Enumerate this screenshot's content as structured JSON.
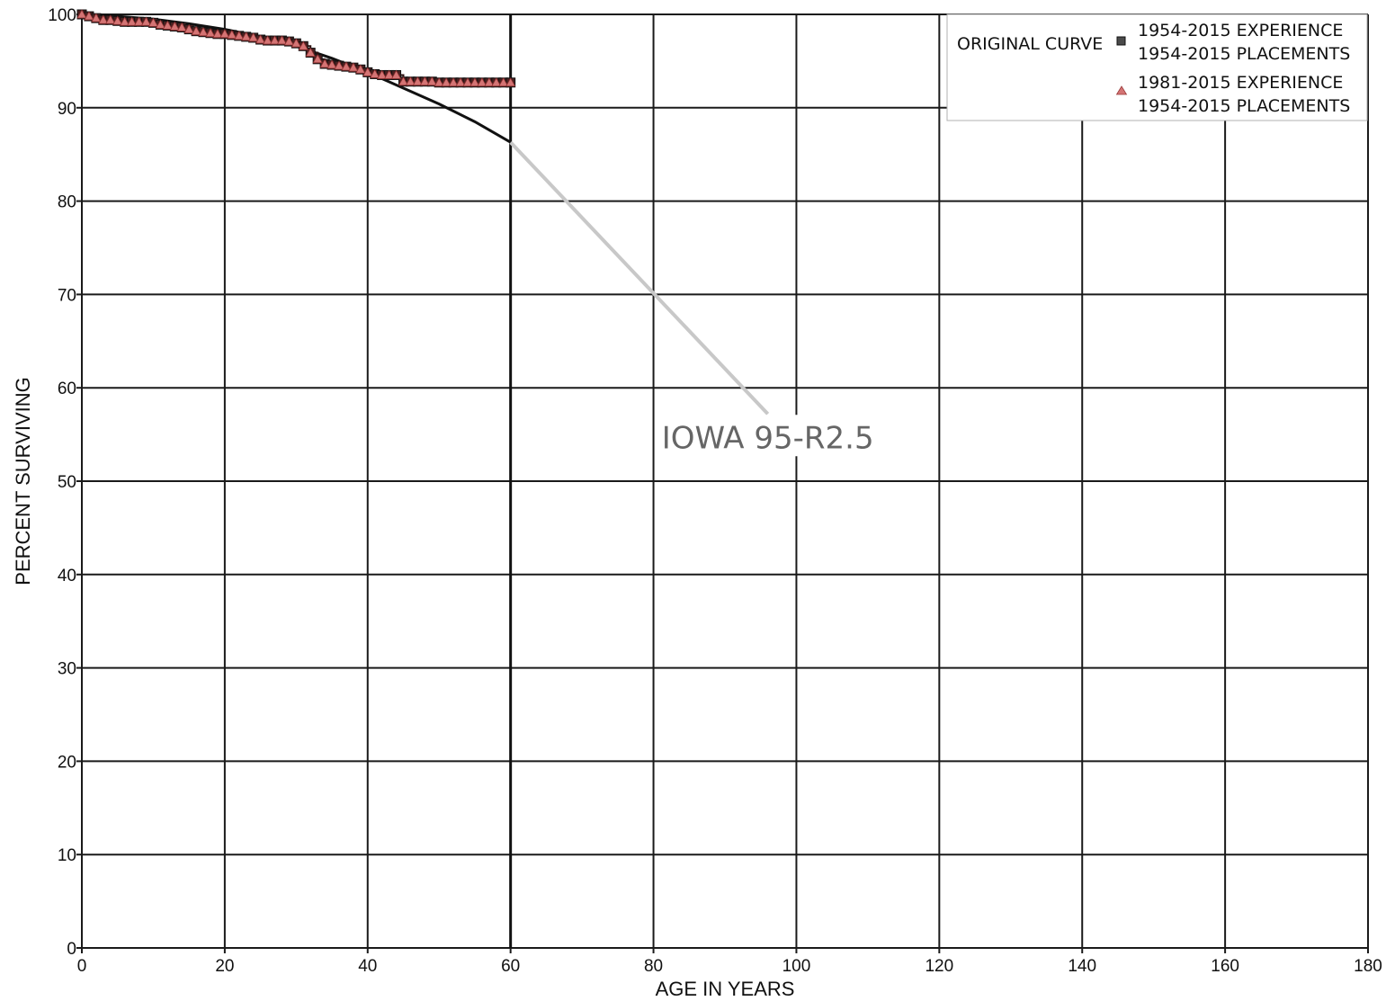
{
  "chart_data": {
    "type": "line",
    "xlabel": "AGE IN YEARS",
    "ylabel": "PERCENT SURVIVING",
    "xlim": [
      0,
      180
    ],
    "ylim": [
      0,
      100
    ],
    "x_ticks": [
      0,
      20,
      40,
      60,
      80,
      100,
      120,
      140,
      160,
      180
    ],
    "y_ticks": [
      0,
      10,
      20,
      30,
      40,
      50,
      60,
      70,
      80,
      90,
      100
    ],
    "grid": true,
    "legend_position": "top-right",
    "annotation": {
      "text": "IOWA 95-R2.5",
      "curve_point": {
        "x": 60,
        "y": 86.3
      },
      "label_at": {
        "x": 96,
        "y": 57.2
      }
    },
    "series": [
      {
        "name": "ORIGINAL CURVE",
        "role": "fitted-curve",
        "color": "#111111",
        "x": [
          0,
          5,
          10,
          15,
          20,
          25,
          30,
          35,
          40,
          45,
          50,
          55,
          60
        ],
        "y": [
          100,
          99.8,
          99.5,
          99.0,
          98.4,
          97.6,
          96.6,
          95.3,
          93.8,
          92.1,
          90.4,
          88.5,
          86.3
        ]
      },
      {
        "name": "ORIGINAL CURVE",
        "role": "extension",
        "color": "#c8c8c8",
        "x": [
          60,
          96
        ],
        "y": [
          86.3,
          57.2
        ]
      },
      {
        "name": "1954-2015 EXPERIENCE 1954-2015 PLACEMENTS",
        "legend_lines": [
          "1954-2015 EXPERIENCE",
          "1954-2015 PLACEMENTS"
        ],
        "marker": "square",
        "color": "#5a1c1c",
        "x": [
          0,
          1,
          2,
          3,
          4,
          5,
          6,
          7,
          8,
          9,
          10,
          11,
          12,
          13,
          14,
          15,
          16,
          17,
          18,
          19,
          20,
          21,
          22,
          23,
          24,
          25,
          26,
          27,
          28,
          29,
          30,
          31,
          32,
          33,
          34,
          35,
          36,
          37,
          38,
          39,
          40,
          41,
          42,
          43,
          44,
          45,
          46,
          47,
          48,
          49,
          50,
          51,
          52,
          53,
          54,
          55,
          56,
          57,
          58,
          59,
          60
        ],
        "y": [
          100,
          99.8,
          99.6,
          99.4,
          99.4,
          99.3,
          99.2,
          99.2,
          99.2,
          99.2,
          99.1,
          98.9,
          98.8,
          98.7,
          98.6,
          98.4,
          98.2,
          98.1,
          98.0,
          97.9,
          97.9,
          97.8,
          97.7,
          97.6,
          97.5,
          97.3,
          97.2,
          97.2,
          97.2,
          97.1,
          96.9,
          96.6,
          95.9,
          95.2,
          94.7,
          94.6,
          94.5,
          94.4,
          94.3,
          94.1,
          93.8,
          93.6,
          93.5,
          93.5,
          93.5,
          92.8,
          92.8,
          92.8,
          92.8,
          92.8,
          92.7,
          92.7,
          92.7,
          92.7,
          92.7,
          92.7,
          92.7,
          92.7,
          92.7,
          92.7,
          92.7
        ]
      },
      {
        "name": "1981-2015 EXPERIENCE 1954-2015 PLACEMENTS",
        "legend_lines": [
          "1981-2015 EXPERIENCE",
          "1954-2015 PLACEMENTS"
        ],
        "marker": "triangle",
        "color": "#c86464",
        "x": [
          0,
          1,
          2,
          3,
          4,
          5,
          6,
          7,
          8,
          9,
          10,
          11,
          12,
          13,
          14,
          15,
          16,
          17,
          18,
          19,
          20,
          21,
          22,
          23,
          24,
          25,
          26,
          27,
          28,
          29,
          30,
          31,
          32,
          33,
          34,
          35,
          36,
          37,
          38,
          39,
          40,
          41,
          42,
          43,
          44,
          45,
          46,
          47,
          48,
          49,
          50,
          51,
          52,
          53,
          54,
          55,
          56,
          57,
          58,
          59,
          60
        ],
        "y": [
          100,
          99.8,
          99.6,
          99.4,
          99.4,
          99.3,
          99.2,
          99.2,
          99.2,
          99.2,
          99.1,
          98.9,
          98.8,
          98.7,
          98.6,
          98.4,
          98.2,
          98.1,
          98.0,
          97.9,
          97.9,
          97.8,
          97.7,
          97.6,
          97.5,
          97.3,
          97.2,
          97.2,
          97.2,
          97.1,
          96.9,
          96.6,
          95.9,
          95.2,
          94.7,
          94.6,
          94.5,
          94.4,
          94.3,
          94.1,
          93.8,
          93.6,
          93.5,
          93.5,
          93.5,
          92.8,
          92.8,
          92.8,
          92.8,
          92.8,
          92.7,
          92.7,
          92.7,
          92.7,
          92.7,
          92.7,
          92.7,
          92.7,
          92.7,
          92.7,
          92.7
        ]
      }
    ]
  }
}
